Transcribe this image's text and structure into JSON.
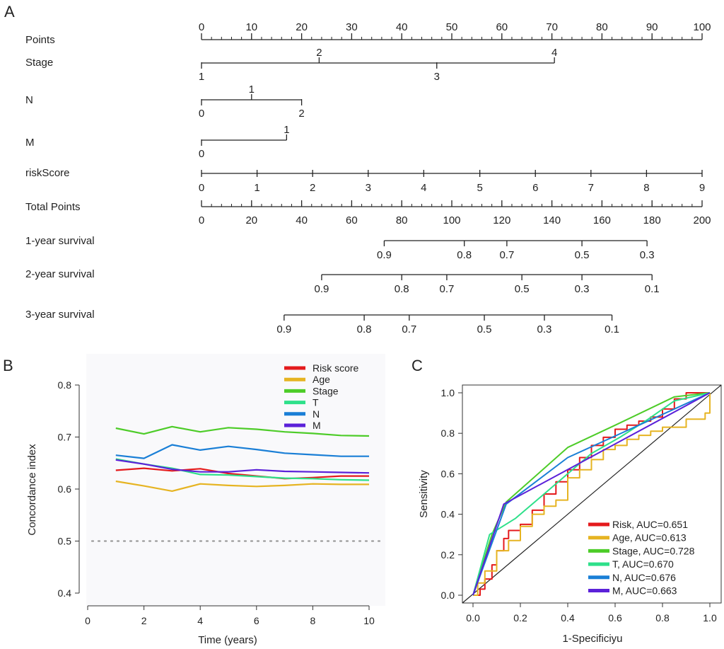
{
  "chart_data": [
    {
      "panel": "A",
      "type": "nomogram",
      "rows": [
        {
          "label": "Points",
          "kind": "axis",
          "min": 0,
          "max": 100,
          "labels": [
            "0",
            "10",
            "20",
            "30",
            "40",
            "50",
            "60",
            "70",
            "80",
            "90",
            "100"
          ],
          "label_values": [
            0,
            10,
            20,
            30,
            40,
            50,
            60,
            70,
            80,
            90,
            100
          ],
          "minor_step": 2
        },
        {
          "label": "Stage",
          "kind": "categorical",
          "range": [
            0,
            70.5
          ],
          "ticks": [
            {
              "label": "1",
              "points": 0,
              "side": "below"
            },
            {
              "label": "2",
              "points": 23.5,
              "side": "above"
            },
            {
              "label": "3",
              "points": 47,
              "side": "below"
            },
            {
              "label": "4",
              "points": 70.5,
              "side": "above"
            }
          ]
        },
        {
          "label": "N",
          "kind": "categorical",
          "range": [
            0,
            20
          ],
          "ticks": [
            {
              "label": "0",
              "points": 0,
              "side": "below"
            },
            {
              "label": "1",
              "points": 10,
              "side": "above"
            },
            {
              "label": "2",
              "points": 20,
              "side": "below"
            }
          ]
        },
        {
          "label": "M",
          "kind": "categorical",
          "range": [
            0,
            17
          ],
          "ticks": [
            {
              "label": "0",
              "points": 0,
              "side": "below"
            },
            {
              "label": "1",
              "points": 17,
              "side": "above"
            }
          ]
        },
        {
          "label": "riskScore",
          "kind": "continuous",
          "ticks": [
            {
              "label": "0",
              "points": 0
            },
            {
              "label": "1",
              "points": 11.1
            },
            {
              "label": "2",
              "points": 22.2
            },
            {
              "label": "3",
              "points": 33.3
            },
            {
              "label": "4",
              "points": 44.4
            },
            {
              "label": "5",
              "points": 55.6
            },
            {
              "label": "6",
              "points": 66.7
            },
            {
              "label": "7",
              "points": 77.8
            },
            {
              "label": "8",
              "points": 88.9
            },
            {
              "label": "9",
              "points": 100
            }
          ]
        },
        {
          "label": "Total Points",
          "kind": "axis",
          "min": 0,
          "max": 200,
          "labels": [
            "0",
            "20",
            "40",
            "60",
            "80",
            "100",
            "120",
            "140",
            "160",
            "180",
            "200"
          ],
          "label_values": [
            0,
            20,
            40,
            60,
            80,
            100,
            120,
            140,
            160,
            180,
            200
          ],
          "minor_step": 4
        },
        {
          "label": "1-year survival",
          "kind": "survival",
          "range": [
            73,
            178
          ],
          "ticks": [
            {
              "label": "0.9",
              "total_points": 73
            },
            {
              "label": "0.8",
              "total_points": 105
            },
            {
              "label": "0.7",
              "total_points": 122
            },
            {
              "label": "0.5",
              "total_points": 152
            },
            {
              "label": "0.3",
              "total_points": 178
            }
          ]
        },
        {
          "label": "2-year survival",
          "kind": "survival",
          "range": [
            48,
            180
          ],
          "ticks": [
            {
              "label": "0.9",
              "total_points": 48
            },
            {
              "label": "0.8",
              "total_points": 80
            },
            {
              "label": "0.7",
              "total_points": 98
            },
            {
              "label": "0.5",
              "total_points": 128
            },
            {
              "label": "0.3",
              "total_points": 152
            },
            {
              "label": "0.1",
              "total_points": 180
            }
          ]
        },
        {
          "label": "3-year survival",
          "kind": "survival",
          "range": [
            33,
            164
          ],
          "ticks": [
            {
              "label": "0.9",
              "total_points": 33
            },
            {
              "label": "0.8",
              "total_points": 65
            },
            {
              "label": "0.7",
              "total_points": 83
            },
            {
              "label": "0.5",
              "total_points": 113
            },
            {
              "label": "0.3",
              "total_points": 137
            },
            {
              "label": "0.1",
              "total_points": 164
            }
          ]
        }
      ]
    },
    {
      "panel": "B",
      "type": "line",
      "xlabel": "Time (years)",
      "ylabel": "Concordance index",
      "xlim": [
        0,
        10
      ],
      "ylim": [
        0.4,
        0.8
      ],
      "xticks": [
        0,
        2,
        4,
        6,
        8,
        10
      ],
      "xtick_labels": [
        "0",
        "2",
        "4",
        "6",
        "8",
        "10"
      ],
      "yticks": [
        0.4,
        0.5,
        0.6,
        0.7,
        0.8
      ],
      "ytick_labels": [
        "0.4",
        "0.5",
        "0.6",
        "0.7",
        "0.8"
      ],
      "reference_line": 0.5,
      "legend_position": "top-right",
      "x": [
        1,
        2,
        3,
        4,
        5,
        6,
        7,
        8,
        9,
        10
      ],
      "series": [
        {
          "name": "Risk score",
          "color": "#e41a1c",
          "values": [
            0.636,
            0.64,
            0.635,
            0.639,
            0.63,
            0.625,
            0.62,
            0.622,
            0.625,
            0.625
          ]
        },
        {
          "name": "Age",
          "color": "#e6b422",
          "values": [
            0.615,
            0.606,
            0.596,
            0.61,
            0.607,
            0.605,
            0.607,
            0.61,
            0.609,
            0.609
          ]
        },
        {
          "name": "Stage",
          "color": "#4dcc28",
          "values": [
            0.717,
            0.706,
            0.72,
            0.71,
            0.718,
            0.715,
            0.71,
            0.707,
            0.703,
            0.702
          ]
        },
        {
          "name": "T",
          "color": "#2ee08a",
          "values": [
            0.658,
            0.648,
            0.64,
            0.628,
            0.627,
            0.624,
            0.621,
            0.62,
            0.618,
            0.617
          ]
        },
        {
          "name": "N",
          "color": "#1a7fd6",
          "values": [
            0.665,
            0.659,
            0.685,
            0.675,
            0.682,
            0.676,
            0.669,
            0.666,
            0.663,
            0.663
          ]
        },
        {
          "name": "M",
          "color": "#5b21d9",
          "values": [
            0.656,
            0.648,
            0.638,
            0.633,
            0.633,
            0.637,
            0.634,
            0.633,
            0.632,
            0.631
          ]
        }
      ]
    },
    {
      "panel": "C",
      "type": "line",
      "subtype": "roc",
      "xlabel": "1-Specificiyu",
      "ylabel": "Sensitivity",
      "xlim": [
        0,
        1
      ],
      "ylim": [
        0,
        1
      ],
      "xticks": [
        0,
        0.2,
        0.4,
        0.6,
        0.8,
        1.0
      ],
      "xtick_labels": [
        "0.0",
        "0.2",
        "0.4",
        "0.6",
        "0.8",
        "1.0"
      ],
      "yticks": [
        0,
        0.2,
        0.4,
        0.6,
        0.8,
        1.0
      ],
      "ytick_labels": [
        "0.0",
        "0.2",
        "0.4",
        "0.6",
        "0.8",
        "1.0"
      ],
      "diagonal": true,
      "legend_position": "bottom-right",
      "series": [
        {
          "name": "Risk, AUC=0.651",
          "color": "#e41a1c",
          "x": [
            0,
            0.03,
            0.05,
            0.08,
            0.1,
            0.13,
            0.15,
            0.2,
            0.25,
            0.3,
            0.35,
            0.4,
            0.45,
            0.5,
            0.55,
            0.6,
            0.65,
            0.7,
            0.75,
            0.8,
            0.85,
            0.9,
            1.0
          ],
          "y": [
            0,
            0.03,
            0.08,
            0.15,
            0.22,
            0.28,
            0.32,
            0.35,
            0.42,
            0.5,
            0.56,
            0.62,
            0.68,
            0.74,
            0.78,
            0.82,
            0.84,
            0.86,
            0.88,
            0.92,
            0.97,
            1.0,
            1.0
          ]
        },
        {
          "name": "Age, AUC=0.613",
          "color": "#e6b422",
          "x": [
            0,
            0.02,
            0.05,
            0.1,
            0.15,
            0.2,
            0.25,
            0.3,
            0.35,
            0.4,
            0.45,
            0.5,
            0.55,
            0.6,
            0.65,
            0.7,
            0.75,
            0.8,
            0.9,
            0.98,
            1.0
          ],
          "y": [
            0,
            0.06,
            0.12,
            0.22,
            0.27,
            0.34,
            0.4,
            0.44,
            0.47,
            0.58,
            0.62,
            0.67,
            0.72,
            0.74,
            0.77,
            0.79,
            0.81,
            0.83,
            0.87,
            0.9,
            1.0
          ]
        },
        {
          "name": "Stage, AUC=0.728",
          "color": "#4dcc28",
          "x": [
            0,
            0.08,
            0.14,
            0.4,
            0.6,
            0.85,
            1.0
          ],
          "y": [
            0,
            0.3,
            0.46,
            0.73,
            0.84,
            0.98,
            1.0
          ]
        },
        {
          "name": "T, AUC=0.670",
          "color": "#2ee08a",
          "x": [
            0,
            0.07,
            0.18,
            0.28,
            0.4,
            0.5,
            0.62,
            0.74,
            0.85,
            1.0
          ],
          "y": [
            0,
            0.3,
            0.38,
            0.48,
            0.6,
            0.7,
            0.78,
            0.87,
            0.96,
            1.0
          ]
        },
        {
          "name": "N, AUC=0.676",
          "color": "#1a7fd6",
          "x": [
            0,
            0.14,
            0.4,
            0.7,
            1.0
          ],
          "y": [
            0,
            0.45,
            0.68,
            0.84,
            1.0
          ]
        },
        {
          "name": "M, AUC=0.663",
          "color": "#5b21d9",
          "x": [
            0,
            0.13,
            1.0
          ],
          "y": [
            0,
            0.45,
            1.0
          ]
        }
      ]
    }
  ],
  "panel_labels": {
    "a": "A",
    "b": "B",
    "c": "C"
  }
}
